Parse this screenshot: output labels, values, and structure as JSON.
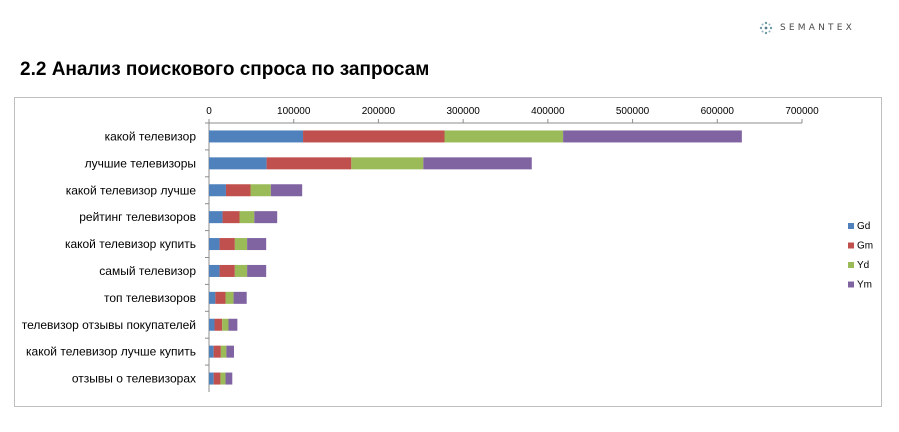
{
  "logo": {
    "text": "SEMANTEX",
    "icon": "semantex-logo-icon"
  },
  "page": {
    "title": "2.2 Анализ поискового спроса по запросам"
  },
  "chart_data": {
    "type": "bar",
    "orientation": "horizontal",
    "stacked": true,
    "categories": [
      "какой телевизор",
      "лучшие телевизоры",
      "какой телевизор лучше",
      "рейтинг телевизоров",
      "какой телевизор купить",
      "самый телевизор",
      "топ телевизоров",
      "телевизор отзывы покупателей",
      "какой телевизор лучше купить",
      "отзывы о телевизорах"
    ],
    "series": [
      {
        "name": "Gd",
        "color": "#4f81bd",
        "values": [
          111000,
          68000,
          20000,
          16000,
          12500,
          12500,
          7500,
          6500,
          5500,
          5500
        ]
      },
      {
        "name": "Gm",
        "color": "#c0504d",
        "values": [
          167000,
          100000,
          29000,
          20000,
          18000,
          18000,
          12000,
          9000,
          8500,
          8000
        ]
      },
      {
        "name": "Yd",
        "color": "#9bbb59",
        "values": [
          140000,
          85000,
          24000,
          17500,
          14500,
          14500,
          9500,
          7500,
          6500,
          6000
        ]
      },
      {
        "name": "Ym",
        "color": "#8064a2",
        "values": [
          211000,
          128000,
          37000,
          27000,
          22500,
          22500,
          15500,
          10500,
          9000,
          8000
        ]
      }
    ],
    "xticks": [
      "0",
      "100000",
      "200000",
      "300000",
      "400000",
      "500000",
      "600000",
      "700000"
    ],
    "xlim": [
      0,
      700000
    ],
    "axis_position": "top",
    "legend": "right",
    "title": "",
    "xlabel": "",
    "ylabel": ""
  }
}
